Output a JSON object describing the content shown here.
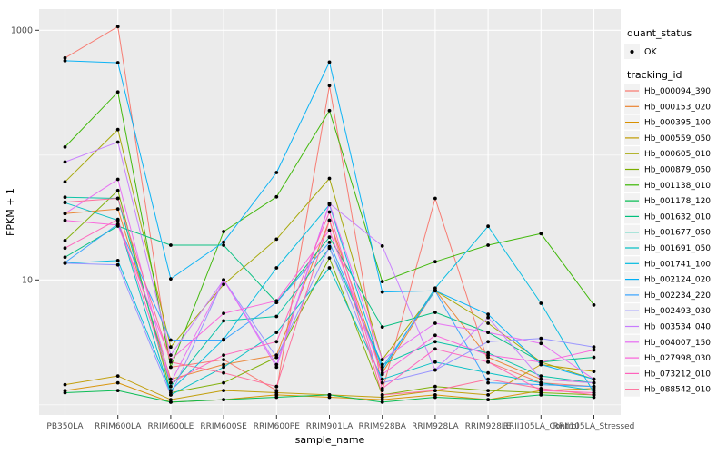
{
  "figure": {
    "bg": "#FFFFFF",
    "panel_bg": "#EBEBEB",
    "grid_color": "#FFFFFF",
    "point_color": "#000000",
    "tick_text_color": "#4D4D4D",
    "title_text_color": "#000000",
    "legend_key_bg": "#F2F2F2"
  },
  "axes": {
    "x_title": "sample_name",
    "y_title": "FPKM + 1",
    "y_ticks": [
      {
        "label": "1000",
        "value": 1000
      },
      {
        "label": "10",
        "value": 10
      }
    ],
    "y_minor_values": [
      1,
      100
    ]
  },
  "legend": {
    "quant_title": "quant_status",
    "quant_ok_label": "OK",
    "tracking_title": "tracking_id"
  },
  "chart_data": {
    "type": "line",
    "title": "",
    "xlabel": "sample_name",
    "ylabel": "FPKM + 1",
    "y_scale": "log10",
    "ylim": [
      0.75,
      1500
    ],
    "grid": true,
    "legend_position": "right",
    "categories": [
      "PB350LA",
      "RRIM600LA",
      "RRIM600LE",
      "RRIM600SE",
      "RRIM600PE",
      "RRIM901LA",
      "RRIM928BA",
      "RRIM928LA",
      "RRIM928LE",
      "RRII105LA_Control",
      "RRII105LA_Stressed"
    ],
    "series": [
      {
        "name": "Hb_000094_390",
        "color": "#F8766D",
        "values": [
          600,
          1070,
          2.0,
          2.3,
          1.3,
          360,
          1.3,
          45,
          2.2,
          1.5,
          1.4
        ]
      },
      {
        "name": "Hb_000153_020",
        "color": "#EA8331",
        "values": [
          34,
          37,
          1.6,
          2.1,
          2.5,
          30,
          1.8,
          8.3,
          2.4,
          1.6,
          1.5
        ]
      },
      {
        "name": "Hb_000395_100",
        "color": "#D89000",
        "values": [
          1.3,
          1.5,
          1.05,
          1.1,
          1.2,
          1.15,
          1.1,
          1.2,
          1.1,
          1.3,
          1.35
        ]
      },
      {
        "name": "Hb_000559_050",
        "color": "#C09B00",
        "values": [
          1.45,
          1.7,
          1.1,
          1.3,
          1.25,
          1.2,
          1.15,
          1.3,
          1.2,
          2.1,
          1.85
        ]
      },
      {
        "name": "Hb_000605_010",
        "color": "#A3A500",
        "values": [
          61,
          160,
          2.9,
          9.2,
          21.2,
          65,
          2.3,
          8.2,
          4.5,
          2.2,
          1.6
        ]
      },
      {
        "name": "Hb_000879_050",
        "color": "#7CAE00",
        "values": [
          20.7,
          52,
          1.25,
          1.5,
          2.4,
          15,
          1.2,
          1.4,
          1.3,
          1.25,
          1.2
        ]
      },
      {
        "name": "Hb_001138_010",
        "color": "#39B600",
        "values": [
          116,
          320,
          2.0,
          24.4,
          46.3,
          227,
          9.7,
          14,
          19,
          23.5,
          6.3
        ]
      },
      {
        "name": "Hb_001178_120",
        "color": "#00BB4E",
        "values": [
          1.25,
          1.3,
          1.05,
          1.1,
          1.15,
          1.2,
          1.05,
          1.15,
          1.1,
          1.2,
          1.15
        ]
      },
      {
        "name": "Hb_001632_010",
        "color": "#00BF7D",
        "values": [
          15.2,
          27,
          19,
          19,
          6.6,
          22,
          4.2,
          5.5,
          3.8,
          2.2,
          2.4
        ]
      },
      {
        "name": "Hb_001677_050",
        "color": "#00C1A3",
        "values": [
          46,
          45,
          1.4,
          4.7,
          5.1,
          18,
          2.1,
          3.2,
          2.6,
          1.7,
          1.5
        ]
      },
      {
        "name": "Hb_001691_050",
        "color": "#00BFC4",
        "values": [
          41.5,
          30,
          1.2,
          2.0,
          3.8,
          12.5,
          1.6,
          2.2,
          1.8,
          1.5,
          1.3
        ]
      },
      {
        "name": "Hb_001741_100",
        "color": "#00BAE0",
        "values": [
          13.6,
          14.3,
          1.3,
          3.35,
          12.5,
          40,
          1.9,
          8.6,
          26.9,
          6.5,
          1.25
        ]
      },
      {
        "name": "Hb_002124_020",
        "color": "#00B0F6",
        "values": [
          570,
          550,
          10.2,
          20.1,
          72.5,
          556,
          8.0,
          8.2,
          5.3,
          2.1,
          1.6
        ]
      },
      {
        "name": "Hb_002234_220",
        "color": "#35A2FF",
        "values": [
          13.8,
          28,
          3.3,
          3.3,
          6.6,
          20,
          2.0,
          8.2,
          1.5,
          1.45,
          1.4
        ]
      },
      {
        "name": "Hb_002493_030",
        "color": "#9590FF",
        "values": [
          13.6,
          13.2,
          1.2,
          10,
          2.4,
          18.5,
          1.5,
          1.9,
          3.2,
          3.4,
          2.9
        ]
      },
      {
        "name": "Hb_003534_040",
        "color": "#C77CFF",
        "values": [
          88,
          127,
          2.5,
          10,
          2.1,
          41,
          18.7,
          1.9,
          5.0,
          1.6,
          1.5
        ]
      },
      {
        "name": "Hb_004007_150",
        "color": "#E76BF3",
        "values": [
          34,
          64,
          1.5,
          10,
          2.0,
          40.8,
          2.3,
          4.5,
          3.8,
          3.1,
          1.6
        ]
      },
      {
        "name": "Hb_027998_030",
        "color": "#FA62DB",
        "values": [
          30,
          27.5,
          2.3,
          5.4,
          6.8,
          25,
          1.75,
          3.6,
          2.5,
          2.2,
          2.75
        ]
      },
      {
        "name": "Hb_073212_010",
        "color": "#FF62BC",
        "values": [
          18,
          30.5,
          1.5,
          2.5,
          3.2,
          35,
          1.35,
          2.8,
          2.2,
          1.3,
          1.25
        ]
      },
      {
        "name": "Hb_088542_010",
        "color": "#FF6A98",
        "values": [
          42,
          45,
          2.2,
          1.8,
          1.4,
          30,
          1.2,
          1.3,
          1.6,
          1.35,
          1.2
        ]
      }
    ]
  }
}
